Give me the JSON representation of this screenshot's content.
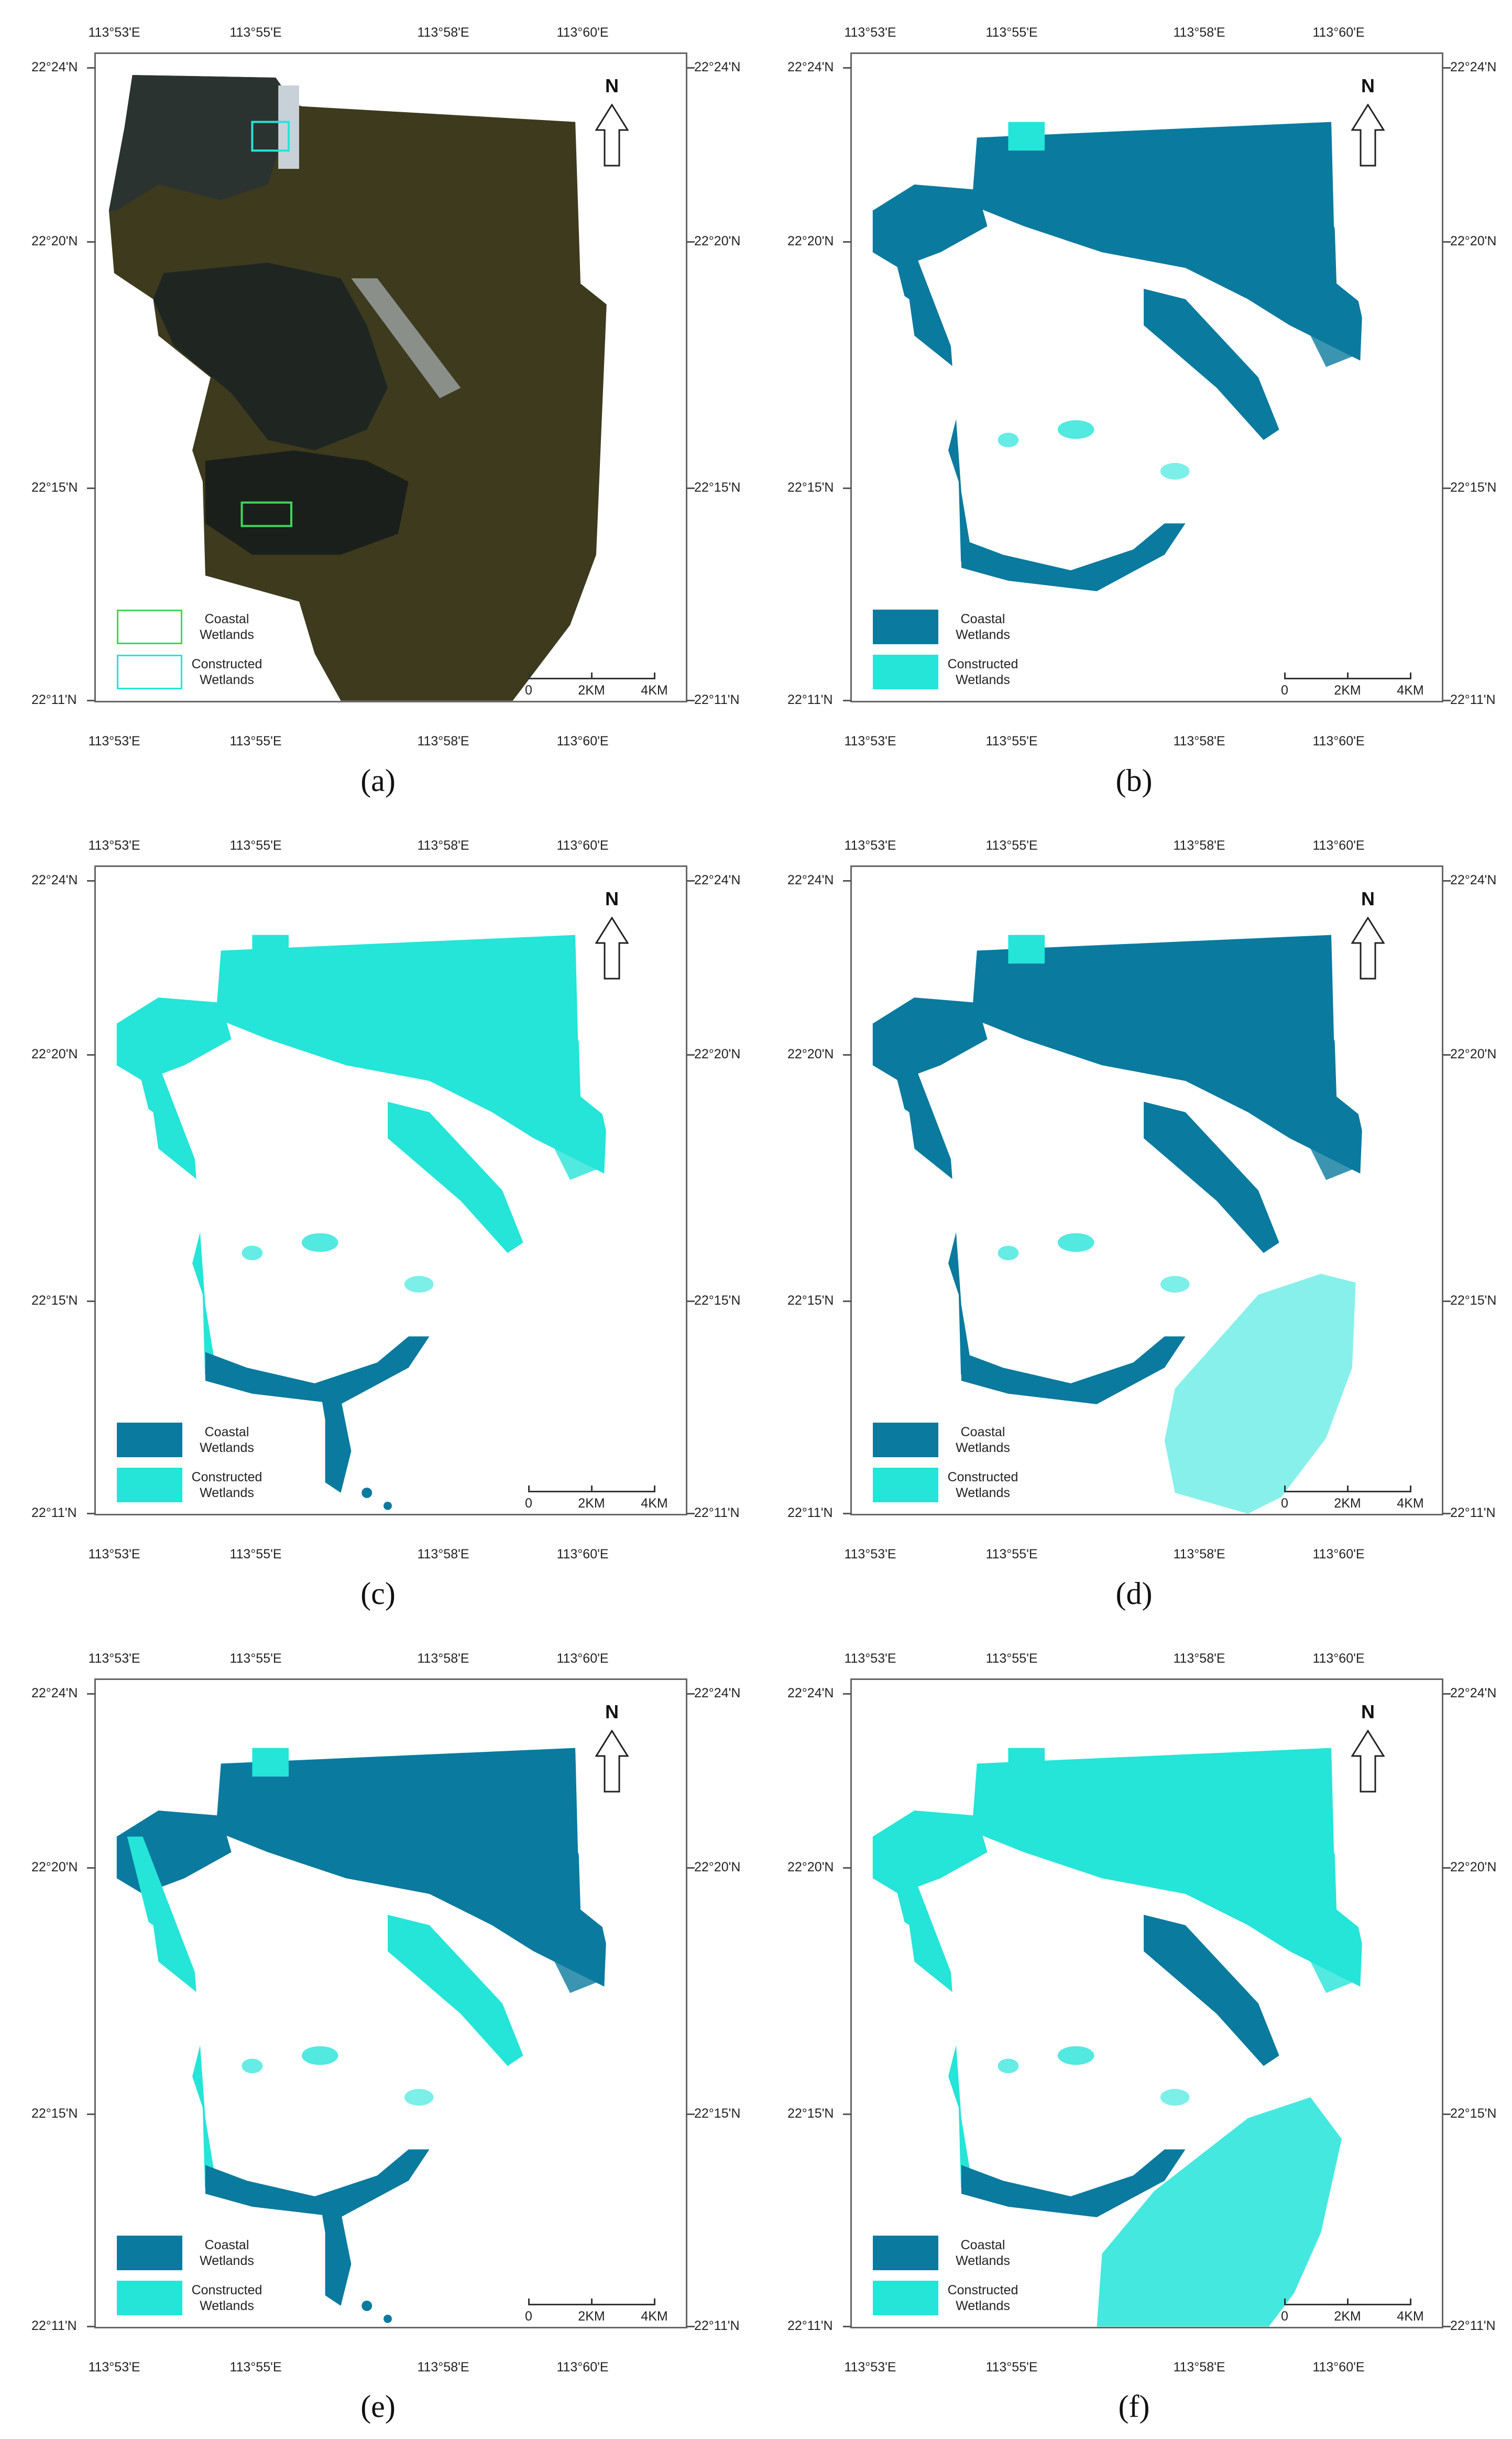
{
  "lon_labels": [
    "113°53'E",
    "113°55'E",
    "113°58'E",
    "113°60'E"
  ],
  "lat_labels": [
    "22°24'N",
    "22°20'N",
    "22°15'N",
    "22°11'N"
  ],
  "north_label": "N",
  "scale_labels": [
    "0",
    "2KM",
    "4KM"
  ],
  "legend": {
    "coastal": "Coastal\nWetlands",
    "constructed": "Constructed\nWetlands"
  },
  "colors": {
    "coastal_wetlands": "#0a7a9e",
    "constructed_wetlands": "#25e4d8",
    "satellite_water": "#3d3a1e",
    "satellite_land": "#2b3330"
  },
  "panels": [
    {
      "label": "(a)",
      "kind": "satellite-image"
    },
    {
      "label": "(b)",
      "kind": "classification-map"
    },
    {
      "label": "(c)",
      "kind": "classification-map"
    },
    {
      "label": "(d)",
      "kind": "classification-map"
    },
    {
      "label": "(e)",
      "kind": "classification-map"
    },
    {
      "label": "(f)",
      "kind": "classification-map"
    }
  ]
}
